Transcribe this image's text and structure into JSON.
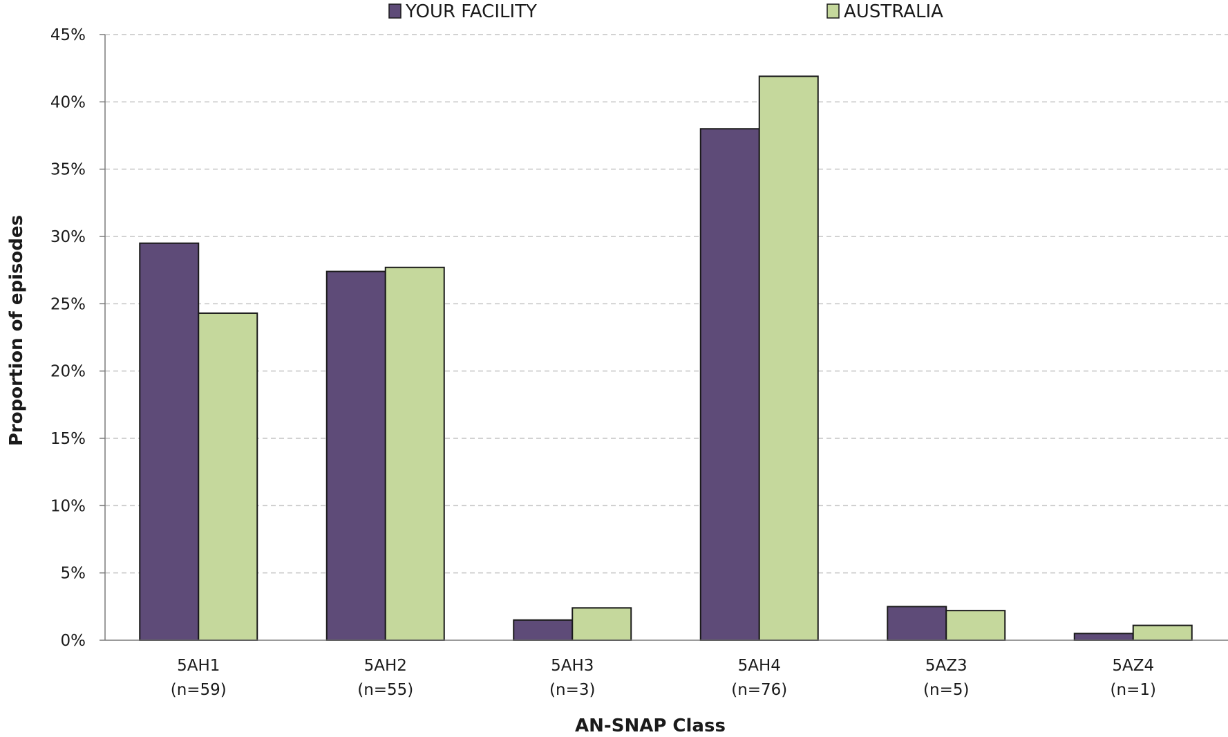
{
  "chart_data": {
    "type": "bar",
    "title": "",
    "xlabel": "AN-SNAP Class",
    "ylabel": "Proportion of episodes",
    "ylim": [
      0,
      45
    ],
    "ytick_step": 5,
    "y_unit_suffix": "%",
    "grid": true,
    "legend_position": "top",
    "categories": [
      [
        "5AH1",
        "(n=59)"
      ],
      [
        "5AH2",
        "(n=55)"
      ],
      [
        "5AH3",
        "(n=3)"
      ],
      [
        "5AH4",
        "(n=76)"
      ],
      [
        "5AZ3",
        "(n=5)"
      ],
      [
        "5AZ4",
        "(n=1)"
      ]
    ],
    "series": [
      {
        "name": "YOUR FACILITY",
        "color": "#5e4b78",
        "values": [
          29.5,
          27.4,
          1.5,
          38.0,
          2.5,
          0.5
        ]
      },
      {
        "name": "AUSTRALIA",
        "color": "#c5d89c",
        "values": [
          24.3,
          27.7,
          2.4,
          41.9,
          2.2,
          1.1
        ]
      }
    ]
  }
}
